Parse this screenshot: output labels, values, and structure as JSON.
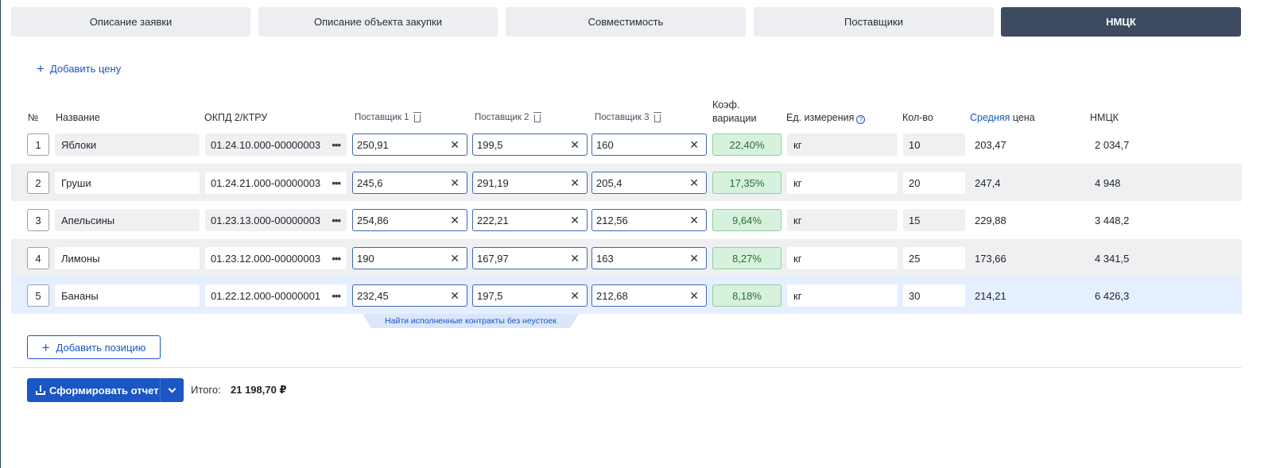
{
  "tabs": [
    {
      "label": "Описание заявки",
      "active": false
    },
    {
      "label": "Описание объекта закупки",
      "active": false
    },
    {
      "label": "Совместимость",
      "active": false
    },
    {
      "label": "Поставщики",
      "active": false
    },
    {
      "label": "НМЦК",
      "active": true
    }
  ],
  "add_price_label": "Добавить цену",
  "headers": {
    "num": "№",
    "name": "Название",
    "okpd": "ОКПД 2/КТРУ",
    "supplier1": "Поставщик 1",
    "supplier2": "Поставщик 2",
    "supplier3": "Поставщик 3",
    "coef_line1": "Коэф.",
    "coef_line2": "вариации",
    "unit": "Ед. измерения",
    "qty": "Кол-во",
    "avg_link": "Средняя",
    "avg_rest": "цена",
    "nmck": "НМЦК"
  },
  "rows": [
    {
      "num": "1",
      "name": "Яблоки",
      "okpd": "01.24.10.000-00000003",
      "p1": "250,91",
      "p2": "199,5",
      "p3": "160",
      "coef": "22,40%",
      "unit": "кг",
      "qty": "10",
      "avg": "203,47",
      "nmck": "2 034,7"
    },
    {
      "num": "2",
      "name": "Груши",
      "okpd": "01.24.21.000-00000003",
      "p1": "245,6",
      "p2": "291,19",
      "p3": "205,4",
      "coef": "17,35%",
      "unit": "кг",
      "qty": "20",
      "avg": "247,4",
      "nmck": "4 948"
    },
    {
      "num": "3",
      "name": "Апельсины",
      "okpd": "01.23.13.000-00000003",
      "p1": "254,86",
      "p2": "222,21",
      "p3": "212,56",
      "coef": "9,64%",
      "unit": "кг",
      "qty": "15",
      "avg": "229,88",
      "nmck": "3 448,2"
    },
    {
      "num": "4",
      "name": "Лимоны",
      "okpd": "01.23.12.000-00000003",
      "p1": "190",
      "p2": "167,97",
      "p3": "163",
      "coef": "8,27%",
      "unit": "кг",
      "qty": "25",
      "avg": "173,66",
      "nmck": "4 341,5"
    },
    {
      "num": "5",
      "name": "Бананы",
      "okpd": "01.22.12.000-00000001",
      "p1": "232,45",
      "p2": "197,5",
      "p3": "212,68",
      "coef": "8,18%",
      "unit": "кг",
      "qty": "30",
      "avg": "214,21",
      "nmck": "6 426,3"
    }
  ],
  "hint": "Найти исполненные контракты без неустоек",
  "add_position_label": "Добавить позицию",
  "report_button_label": "Сформировать отчет",
  "total_label": "Итого:",
  "total_value": "21 198,70 ₽",
  "colors": {
    "accent": "#1a56c4",
    "active_tab": "#3d4a60",
    "coef_bg": "#d6f2dd"
  },
  "icons": {
    "plus": "plus-icon",
    "trash": "trash-icon",
    "more": "more-icon",
    "clear": "clear-icon",
    "help": "help-icon",
    "download": "download-icon",
    "dropdown": "chevron-down-icon"
  }
}
